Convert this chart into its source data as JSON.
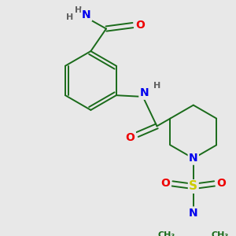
{
  "background_color": "#e8e8e8",
  "bond_color": "#1a6b1a",
  "bond_width": 1.4,
  "atom_colors": {
    "N": "#0000ee",
    "O": "#ee0000",
    "S": "#cccc00",
    "C": "#1a6b1a",
    "H": "#606060"
  },
  "fs": 8.5
}
